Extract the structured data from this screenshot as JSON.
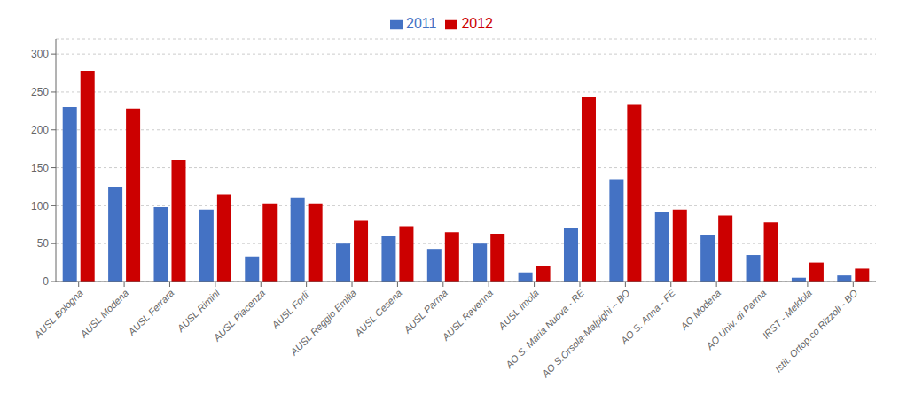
{
  "chart_data": {
    "type": "bar",
    "categories": [
      "AUSL Bologna",
      "AUSL Modena",
      "AUSL Ferrara",
      "AUSL Rimini",
      "AUSL Piacenza",
      "AUSL Forli`",
      "AUSL Reggio Emilia",
      "AUSL Cesena",
      "AUSL Parma",
      "AUSL Ravenna",
      "AUSL Imola",
      "AO S. Maria Nuova - RE",
      "AO S.Orsola-Malpighi – BO",
      "AO S. Anna - FE",
      "AO Modena",
      "AO Univ. di Parma",
      "IRST - Meldola",
      "Istit. Ortop.co Rizzoli - BO"
    ],
    "series": [
      {
        "name": "2011",
        "color": "#4472C4",
        "values": [
          230,
          125,
          98,
          95,
          33,
          110,
          50,
          60,
          43,
          50,
          12,
          70,
          135,
          92,
          62,
          35,
          5,
          8
        ]
      },
      {
        "name": "2012",
        "color": "#CC0000",
        "values": [
          278,
          228,
          160,
          115,
          103,
          103,
          80,
          73,
          65,
          63,
          20,
          243,
          233,
          95,
          87,
          78,
          25,
          17
        ]
      }
    ],
    "ylim": [
      0,
      320
    ],
    "yticks": [
      0,
      50,
      100,
      150,
      200,
      250,
      300
    ],
    "grid": true,
    "legend": "top"
  }
}
